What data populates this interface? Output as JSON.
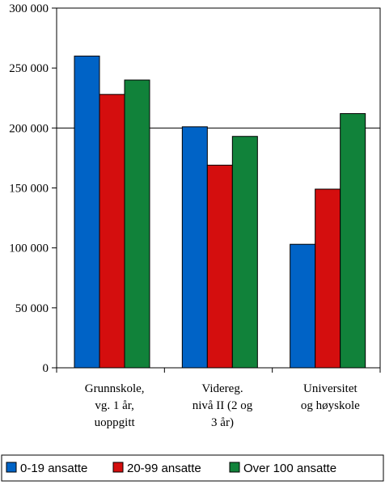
{
  "chart_data": {
    "type": "bar",
    "categories": [
      [
        "Grunnskole,",
        "vg. 1 år,",
        "uoppgitt"
      ],
      [
        "Videreg.",
        "nivå II (2 og",
        "3 år)"
      ],
      [
        "Universitet",
        "og høyskole"
      ]
    ],
    "series": [
      {
        "name": "0-19 ansatte",
        "color": "#0063c6",
        "values": [
          260000,
          201000,
          103000
        ]
      },
      {
        "name": "20-99 ansatte",
        "color": "#d40e0e",
        "values": [
          228000,
          169000,
          149000
        ]
      },
      {
        "name": "Over 100 ansatte",
        "color": "#11823a",
        "values": [
          240000,
          193000,
          212000
        ]
      }
    ],
    "ylim": [
      0,
      300000
    ],
    "yticks": [
      {
        "value": 0,
        "label": "0"
      },
      {
        "value": 50000,
        "label": "50 000"
      },
      {
        "value": 100000,
        "label": "100 000"
      },
      {
        "value": 150000,
        "label": "150 000"
      },
      {
        "value": 200000,
        "label": "200 000"
      },
      {
        "value": 250000,
        "label": "250 000"
      },
      {
        "value": 300000,
        "label": "300 000"
      }
    ],
    "gridlines": [
      200000
    ],
    "legend_position": "bottom",
    "title": "",
    "xlabel": "",
    "ylabel": ""
  }
}
